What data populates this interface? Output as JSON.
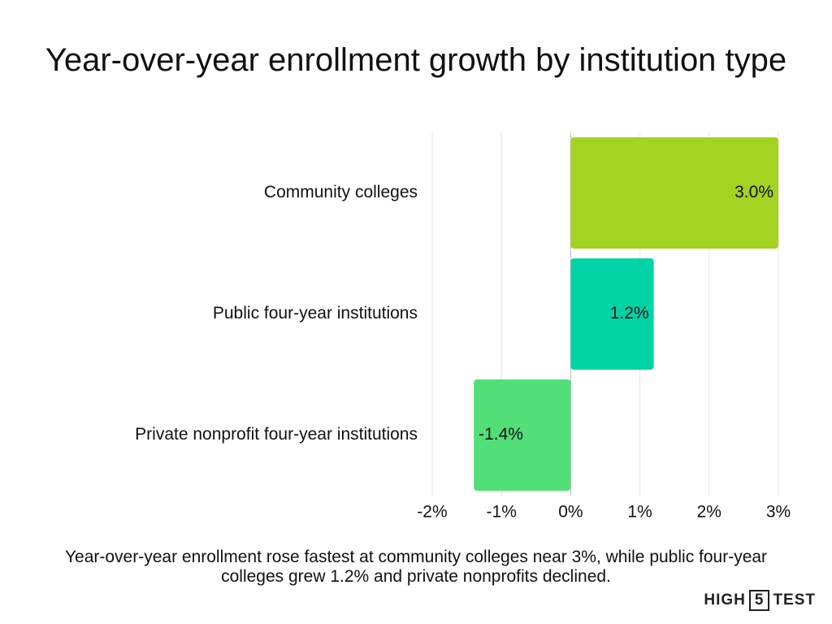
{
  "chart_data": {
    "type": "bar",
    "orientation": "horizontal",
    "title": "Year-over-year enrollment growth by institution type",
    "categories": [
      "Community colleges",
      "Public four-year institutions",
      "Private nonprofit four-year institutions"
    ],
    "values": [
      3.0,
      1.2,
      -1.4
    ],
    "value_labels": [
      "3.0%",
      "1.2%",
      "-1.4%"
    ],
    "colors": [
      "#a4d322",
      "#00d3a5",
      "#52df78"
    ],
    "xlim": [
      -2,
      3
    ],
    "xticks": [
      {
        "value": -2,
        "label": "-2%"
      },
      {
        "value": -1,
        "label": "-1%"
      },
      {
        "value": 0,
        "label": "0%"
      },
      {
        "value": 1,
        "label": "1%"
      },
      {
        "value": 2,
        "label": "2%"
      },
      {
        "value": 3,
        "label": "3%"
      }
    ],
    "grid": true,
    "caption": "Year-over-year enrollment rose fastest at community colleges near 3%, while public four-year colleges grew 1.2% and private nonprofits declined."
  },
  "brand": [
    "HIGH",
    "5",
    "TEST"
  ]
}
